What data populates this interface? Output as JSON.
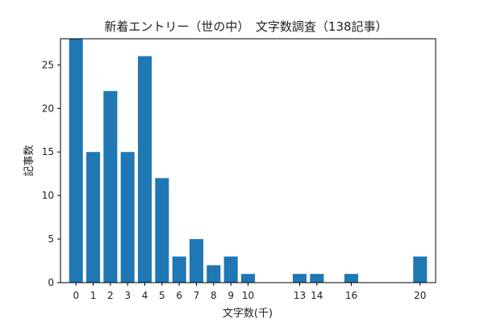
{
  "chart_data": {
    "type": "bar",
    "title": "新着エントリー（世の中）　文字数調査（138記事）",
    "xlabel": "文字数(千)",
    "ylabel": "記事数",
    "x": [
      0,
      1,
      2,
      3,
      4,
      5,
      6,
      7,
      8,
      9,
      10,
      13,
      14,
      16,
      20
    ],
    "values": [
      28,
      15,
      22,
      15,
      26,
      12,
      3,
      5,
      2,
      3,
      1,
      1,
      1,
      1,
      3
    ],
    "xticks": [
      0,
      1,
      2,
      3,
      4,
      5,
      6,
      7,
      8,
      9,
      10,
      13,
      14,
      16,
      20
    ],
    "yticks": [
      0,
      5,
      10,
      15,
      20,
      25
    ],
    "xlim": [
      -0.9,
      20.9
    ],
    "ylim": [
      0,
      28
    ],
    "bar_color": "#1f77b4",
    "grid": false
  }
}
